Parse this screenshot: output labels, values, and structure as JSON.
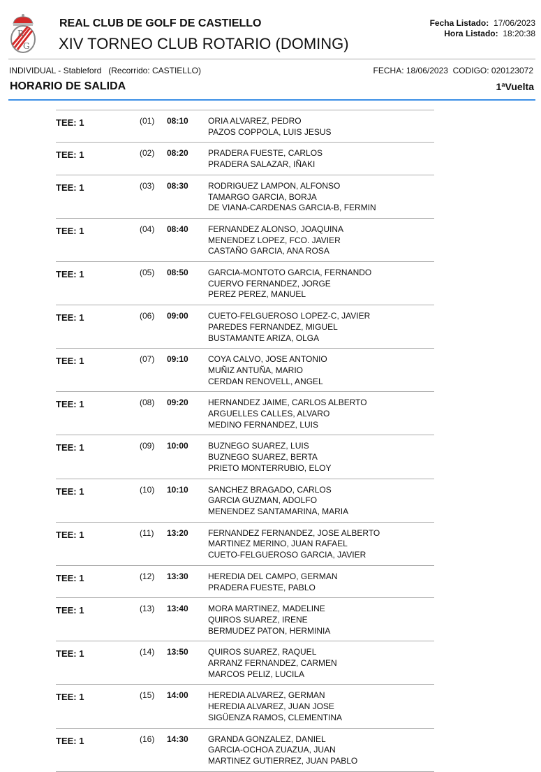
{
  "header": {
    "club_name": "REAL CLUB DE GOLF DE CASTIELLO",
    "tournament": "XIV TORNEO CLUB ROTARIO (DOMING)",
    "fecha_listado_label": "Fecha Listado:",
    "fecha_listado": "17/06/2023",
    "hora_listado_label": "Hora Listado:",
    "hora_listado": "18:20:38",
    "logo_text": "RCG"
  },
  "subheader": {
    "left": "INDIVIDUAL - Stableford   (Recorrido: CASTIELLO)",
    "right": "FECHA: 18/06/2023  CODIGO: 020123072",
    "title": "HORARIO DE SALIDA",
    "round": "1ªVuelta"
  },
  "groups": [
    {
      "tee": "TEE: 1",
      "num": "(01)",
      "time": "08:10",
      "players": [
        "ORIA ALVAREZ, PEDRO",
        "PAZOS COPPOLA, LUIS JESUS"
      ]
    },
    {
      "tee": "TEE: 1",
      "num": "(02)",
      "time": "08:20",
      "players": [
        "PRADERA FUESTE, CARLOS",
        "PRADERA SALAZAR, IÑAKI"
      ]
    },
    {
      "tee": "TEE: 1",
      "num": "(03)",
      "time": "08:30",
      "players": [
        "RODRIGUEZ LAMPON, ALFONSO",
        "TAMARGO GARCIA, BORJA",
        "DE VIANA-CARDENAS GARCIA-B, FERMIN"
      ]
    },
    {
      "tee": "TEE: 1",
      "num": "(04)",
      "time": "08:40",
      "players": [
        "FERNANDEZ ALONSO, JOAQUINA",
        "MENENDEZ LOPEZ, FCO. JAVIER",
        "CASTAÑO GARCIA, ANA ROSA"
      ]
    },
    {
      "tee": "TEE: 1",
      "num": "(05)",
      "time": "08:50",
      "players": [
        "GARCIA-MONTOTO GARCIA, FERNANDO",
        "CUERVO FERNANDEZ, JORGE",
        "PEREZ PEREZ, MANUEL"
      ]
    },
    {
      "tee": "TEE: 1",
      "num": "(06)",
      "time": "09:00",
      "players": [
        "CUETO-FELGUEROSO LOPEZ-C, JAVIER",
        "PAREDES FERNANDEZ, MIGUEL",
        "BUSTAMANTE ARIZA, OLGA"
      ]
    },
    {
      "tee": "TEE: 1",
      "num": "(07)",
      "time": "09:10",
      "players": [
        "COYA CALVO, JOSE ANTONIO",
        "MUÑIZ ANTUÑA, MARIO",
        "CERDAN RENOVELL, ANGEL"
      ]
    },
    {
      "tee": "TEE: 1",
      "num": "(08)",
      "time": "09:20",
      "players": [
        "HERNANDEZ JAIME, CARLOS ALBERTO",
        "ARGUELLES CALLES, ALVARO",
        "MEDINO FERNANDEZ, LUIS"
      ]
    },
    {
      "tee": "TEE: 1",
      "num": "(09)",
      "time": "10:00",
      "players": [
        "BUZNEGO SUAREZ, LUIS",
        "BUZNEGO SUAREZ, BERTA",
        "PRIETO MONTERRUBIO, ELOY"
      ]
    },
    {
      "tee": "TEE: 1",
      "num": "(10)",
      "time": "10:10",
      "players": [
        "SANCHEZ BRAGADO, CARLOS",
        "GARCIA GUZMAN, ADOLFO",
        "MENENDEZ SANTAMARINA, MARIA"
      ]
    },
    {
      "tee": "TEE: 1",
      "num": "(11)",
      "time": "13:20",
      "players": [
        "FERNANDEZ FERNANDEZ, JOSE ALBERTO",
        "MARTINEZ MERINO, JUAN RAFAEL",
        "CUETO-FELGUEROSO GARCIA, JAVIER"
      ]
    },
    {
      "tee": "TEE: 1",
      "num": "(12)",
      "time": "13:30",
      "players": [
        "HEREDIA DEL CAMPO, GERMAN",
        "PRADERA  FUESTE, PABLO"
      ]
    },
    {
      "tee": "TEE: 1",
      "num": "(13)",
      "time": "13:40",
      "players": [
        "MORA MARTINEZ, MADELINE",
        "QUIROS SUAREZ, IRENE",
        "BERMUDEZ PATON, HERMINIA"
      ]
    },
    {
      "tee": "TEE: 1",
      "num": "(14)",
      "time": "13:50",
      "players": [
        "QUIROS SUAREZ, RAQUEL",
        "ARRANZ FERNANDEZ, CARMEN",
        "MARCOS PELIZ, LUCILA"
      ]
    },
    {
      "tee": "TEE: 1",
      "num": "(15)",
      "time": "14:00",
      "players": [
        "HEREDIA ALVAREZ, GERMAN",
        "HEREDIA ALVAREZ, JUAN JOSE",
        "SIGÜENZA RAMOS, CLEMENTINA"
      ]
    },
    {
      "tee": "TEE: 1",
      "num": "(16)",
      "time": "14:30",
      "players": [
        "GRANDA GONZALEZ, DANIEL",
        "GARCIA-OCHOA ZUAZUA, JUAN",
        "MARTINEZ GUTIERREZ, JUAN PABLO"
      ]
    }
  ],
  "colors": {
    "accent_rule": "#3b8fe6",
    "logo_red": "#d42a2a"
  }
}
